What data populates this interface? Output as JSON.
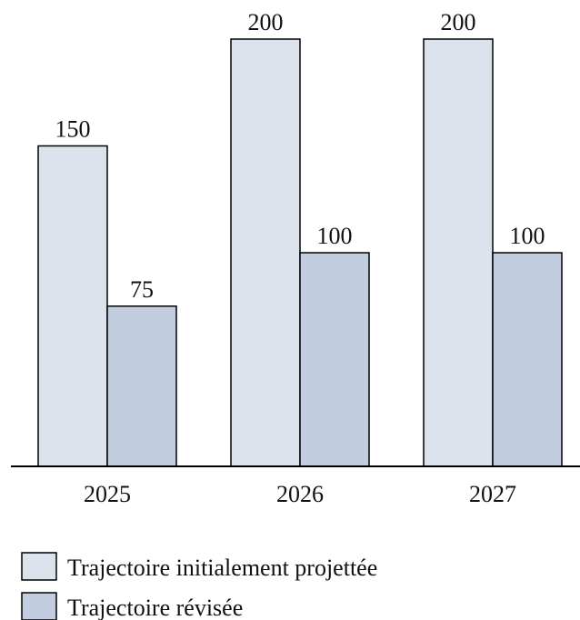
{
  "chart_data": {
    "type": "bar",
    "categories": [
      "2025",
      "2026",
      "2027"
    ],
    "series": [
      {
        "name": "Trajectoire initialement projettée",
        "color": "#dde3ed",
        "values": [
          150,
          200,
          200
        ]
      },
      {
        "name": "Trajectoire révisée",
        "color": "#c3cde0",
        "values": [
          75,
          100,
          100
        ]
      }
    ],
    "ylim": [
      0,
      200
    ],
    "legend": "bottom-left"
  }
}
